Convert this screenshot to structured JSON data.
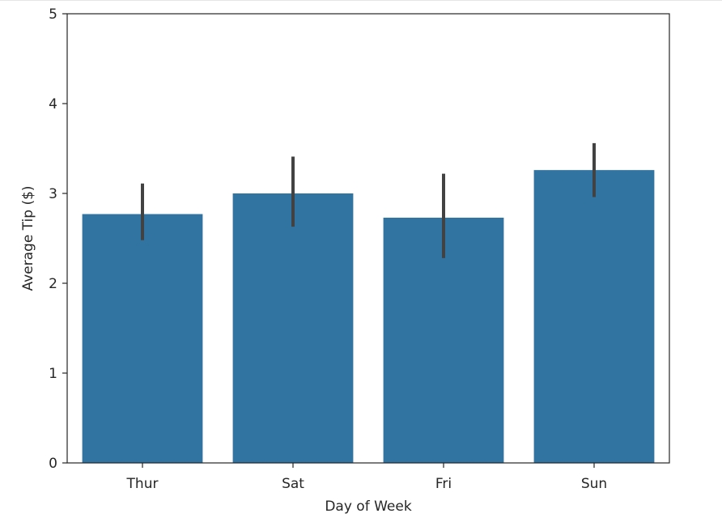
{
  "chart_data": {
    "type": "bar",
    "xlabel": "Day of Week",
    "ylabel": "Average Tip ($)",
    "categories": [
      "Thur",
      "Sat",
      "Fri",
      "Sun"
    ],
    "values": [
      2.77,
      3.0,
      2.73,
      3.26
    ],
    "error_bars": [
      {
        "low": 2.48,
        "high": 3.11
      },
      {
        "low": 2.63,
        "high": 3.41
      },
      {
        "low": 2.28,
        "high": 3.22
      },
      {
        "low": 2.96,
        "high": 3.56
      }
    ],
    "ylim": [
      0,
      5
    ],
    "yticks": [
      0,
      1,
      2,
      3,
      4,
      5
    ],
    "grid": false,
    "colors": {
      "bar": "#3274a1",
      "error_bar": "#424242",
      "axis": "#262626"
    }
  }
}
